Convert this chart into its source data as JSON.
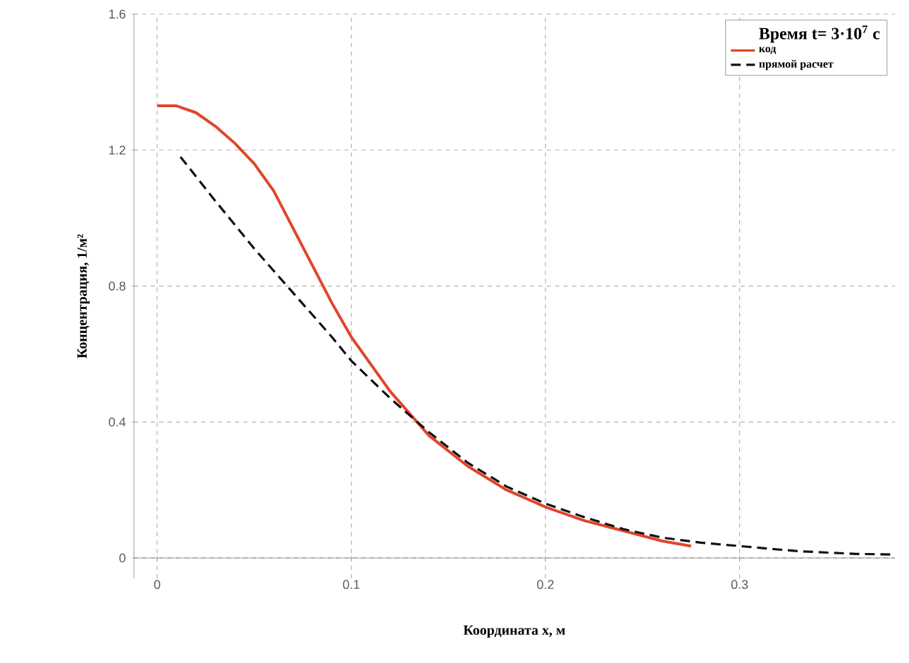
{
  "chart_data": {
    "type": "line",
    "xlabel": "Координата x, м",
    "ylabel": "Концентрация, 1/м²",
    "legend_title": "Время t= 3·10$^{7}$ с",
    "series": [
      {
        "name": "код",
        "color": "#e0452a",
        "line_style": "solid",
        "x": [
          0,
          0.01,
          0.02,
          0.03,
          0.04,
          0.05,
          0.06,
          0.07,
          0.08,
          0.09,
          0.1,
          0.12,
          0.14,
          0.16,
          0.18,
          0.2,
          0.22,
          0.24,
          0.26,
          0.275
        ],
        "values": [
          1.33,
          1.33,
          1.31,
          1.27,
          1.22,
          1.16,
          1.08,
          0.97,
          0.86,
          0.75,
          0.65,
          0.49,
          0.36,
          0.27,
          0.2,
          0.15,
          0.11,
          0.08,
          0.05,
          0.035
        ]
      },
      {
        "name": "прямой расчет",
        "color": "#111111",
        "line_style": "dashed",
        "x": [
          0.012,
          0.03,
          0.05,
          0.07,
          0.09,
          0.1,
          0.12,
          0.14,
          0.16,
          0.18,
          0.2,
          0.22,
          0.24,
          0.26,
          0.28,
          0.3,
          0.33,
          0.36,
          0.38
        ],
        "values": [
          1.18,
          1.05,
          0.91,
          0.78,
          0.65,
          0.58,
          0.47,
          0.37,
          0.28,
          0.21,
          0.16,
          0.12,
          0.085,
          0.06,
          0.045,
          0.035,
          0.02,
          0.012,
          0.01
        ]
      }
    ],
    "xlim": [
      -0.012,
      0.38
    ],
    "ylim": [
      -0.06,
      1.6
    ],
    "xticks": [
      0,
      0.1,
      0.2,
      0.3
    ],
    "yticks": [
      0,
      0.4,
      0.8,
      1.2,
      1.6
    ],
    "grid": true,
    "legend": "top right",
    "marker": "none"
  }
}
